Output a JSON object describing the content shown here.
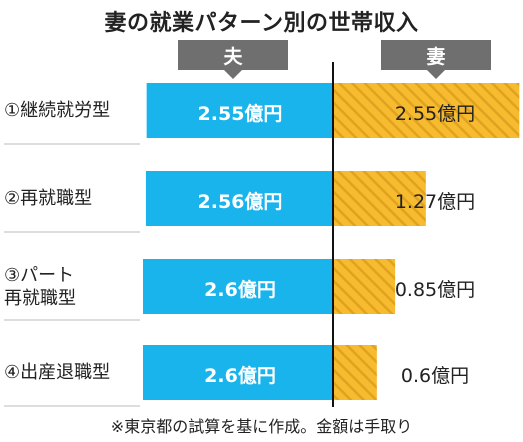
{
  "title": "妻の就業パターン別の世帯収入",
  "legend": {
    "husband": "夫",
    "wife": "妻"
  },
  "colors": {
    "husband": "#19b4ec",
    "wife": "#f6bb2f",
    "wife_stripe": "#e0a21f",
    "divider": "#111111"
  },
  "chart_data": {
    "type": "bar",
    "orientation": "horizontal-diverging",
    "unit": "億円",
    "title": "妻の就業パターン別の世帯収入",
    "categories": [
      {
        "label": "①継続就労型",
        "lines": [
          "①継続就労型"
        ]
      },
      {
        "label": "②再就職型",
        "lines": [
          "②再就職型"
        ]
      },
      {
        "label": "③パート再就職型",
        "lines": [
          "③パート",
          "再就職型"
        ]
      },
      {
        "label": "④出産退職型",
        "lines": [
          "④出産退職型"
        ]
      }
    ],
    "series": [
      {
        "name": "夫",
        "values": [
          2.55,
          2.56,
          2.6,
          2.6
        ],
        "labels": [
          "2.55億円",
          "2.56億円",
          "2.6億円",
          "2.6億円"
        ]
      },
      {
        "name": "妻",
        "values": [
          2.55,
          1.27,
          0.85,
          0.6
        ],
        "labels": [
          "2.55億円",
          "1.27億円",
          "0.85億円",
          "0.6億円"
        ]
      }
    ],
    "xlim": [
      0,
      2.6
    ]
  },
  "footnote": "※東京都の試算を基に作成。金額は手取り"
}
